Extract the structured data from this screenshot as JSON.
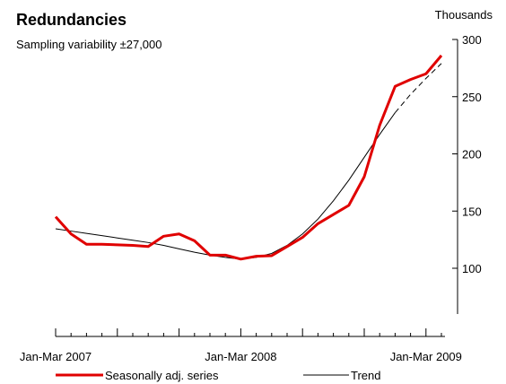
{
  "chart_data": {
    "type": "line",
    "title": "Redundancies",
    "subtitle": "Sampling variability ±27,000",
    "unit_label": "Thousands",
    "x_tick_labels": [
      "Jan-Mar 2007",
      "Jan-Mar 2008",
      "Jan-Mar 2009"
    ],
    "y_ticks": [
      100,
      150,
      200,
      250,
      300
    ],
    "ylim": [
      60,
      300
    ],
    "y_axis_side": "right",
    "grid": false,
    "legend_position": "bottom",
    "series": [
      {
        "name": "Seasonally adj. series",
        "color": "#e00000",
        "style": "solid",
        "values": [
          145,
          130,
          121,
          121,
          120.5,
          120,
          119,
          128,
          130,
          124,
          111.5,
          111.5,
          108,
          110.5,
          111,
          119,
          127,
          139,
          147,
          155,
          180,
          225,
          259,
          265,
          270,
          286
        ]
      },
      {
        "name": "Trend",
        "color": "#000000",
        "style": "solid-then-dashed",
        "dashed_from_index": 22,
        "values": [
          134.5,
          132.5,
          130.5,
          128.5,
          126.5,
          124.5,
          122.5,
          120,
          117,
          114,
          111.5,
          109.5,
          108,
          109.5,
          113,
          120,
          130,
          143,
          159,
          177,
          197,
          217,
          236,
          252,
          266,
          279
        ]
      }
    ]
  }
}
